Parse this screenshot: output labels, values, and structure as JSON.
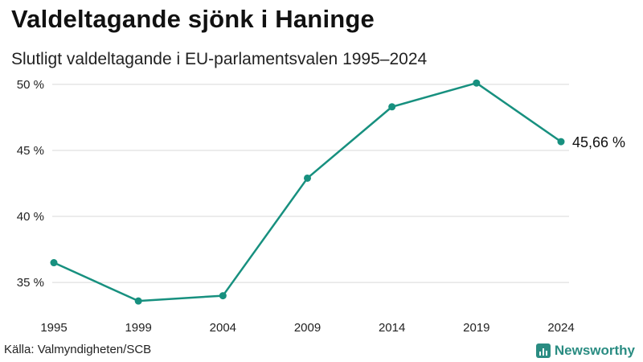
{
  "title": "Valdeltagande sjönk i Haninge",
  "subtitle": "Slutligt valdeltagande i EU-parlamentsvalen 1995–2024",
  "source": "Källa: Valmyndigheten/SCB",
  "brand": "Newsworthy",
  "colors": {
    "line": "#17907f",
    "grid": "#d9d9d9",
    "brand": "#2a8c82"
  },
  "chart_data": {
    "type": "line",
    "x": [
      "1995",
      "1999",
      "2004",
      "2009",
      "2014",
      "2019",
      "2024"
    ],
    "values": [
      36.5,
      33.6,
      34.0,
      42.9,
      48.3,
      50.1,
      45.66
    ],
    "ylim": [
      33,
      50.6
    ],
    "yticks": [
      35,
      40,
      45,
      50
    ],
    "ytick_labels": [
      "35 %",
      "40 %",
      "45 %",
      "50 %"
    ],
    "end_label": "45,66 %",
    "grid": true,
    "legend": "none"
  }
}
